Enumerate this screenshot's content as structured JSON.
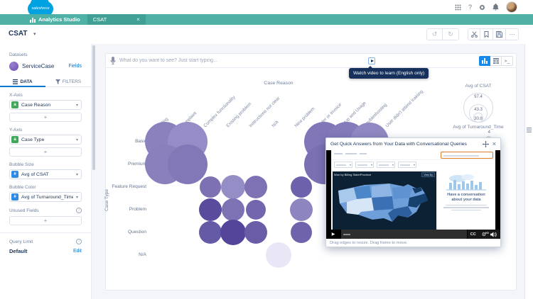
{
  "header": {
    "brand": "salesforce",
    "help_glyph": "?"
  },
  "appbar": {
    "app_name": "Analytics Studio",
    "tab_label": "CSAT"
  },
  "toolbar": {
    "title": "CSAT"
  },
  "icons": {
    "caret": "▾",
    "close": "×",
    "undo": "↺",
    "redo": "↻",
    "more": "···",
    "saql": ">_",
    "info": "i",
    "dimension_glyph": "a",
    "measure_glyph": "#",
    "play": "▶",
    "gear": "⚙"
  },
  "sidebar": {
    "datasets_label": "Datasets",
    "dataset_name": "ServiceCase",
    "fields_link": "Fields",
    "tabs": [
      {
        "label": "DATA"
      },
      {
        "label": "FILTERS"
      }
    ],
    "fields": [
      {
        "label": "X-Axis",
        "value": "Case Reason",
        "kind": "dimension"
      },
      {
        "label": "Y-Axis",
        "value": "Case Type",
        "kind": "dimension"
      },
      {
        "label": "Bubble Size",
        "value": "Avg of CSAT",
        "kind": "measure"
      },
      {
        "label": "Bubble Color",
        "value": "Avg of Turnaround_Time",
        "kind": "measure"
      }
    ],
    "add_label": "+",
    "unused_fields_label": "Unused Fields",
    "query_limit_label": "Query Limit",
    "query_limit_value": "Default",
    "edit_link": "Edit"
  },
  "explorer": {
    "placeholder": "What do you want to see? Just start typing...",
    "tooltip": "Watch video to learn (English only)"
  },
  "chart_data": {
    "type": "bubble",
    "x_title": "Case Reason",
    "y_title": "Case Type",
    "x_categories": [
      "Billing",
      "Complaint",
      "Complex functionality",
      "Existing problem",
      "Instructions not clear",
      "N/A",
      "New problem",
      "Order or Invoice",
      "Setup and Usage",
      "Troubleshooting",
      "User didn't attend training"
    ],
    "y_categories": [
      "Basic",
      "Premium",
      "Feature Request",
      "Problem",
      "Question",
      "N/A"
    ],
    "size_legend": {
      "title": "Avg of CSAT",
      "values": [
        "97.4",
        "43.3",
        "30.8"
      ]
    },
    "color_legend": {
      "title": "Avg of Turnaround_Time",
      "max_label": "4"
    },
    "bubbles": [
      {
        "x": 0,
        "y": 0,
        "r": 28,
        "color": "#8b81bd"
      },
      {
        "x": 1,
        "y": 0,
        "r": 28,
        "color": "#968dc6"
      },
      {
        "x": 7,
        "y": 0,
        "r": 28,
        "color": "#8177b8"
      },
      {
        "x": 8,
        "y": 0,
        "r": 28,
        "color": "#847bba"
      },
      {
        "x": 9,
        "y": 0,
        "r": 27,
        "color": "#9189c2"
      },
      {
        "x": 0,
        "y": 1,
        "r": 28,
        "color": "#8a80bc"
      },
      {
        "x": 1,
        "y": 1,
        "r": 28,
        "color": "#8278b8"
      },
      {
        "x": 7,
        "y": 1,
        "r": 28,
        "color": "#7b70b3"
      },
      {
        "x": 2,
        "y": 2,
        "r": 15,
        "color": "#7d71b4"
      },
      {
        "x": 3,
        "y": 2,
        "r": 17,
        "color": "#958dc5"
      },
      {
        "x": 4,
        "y": 2,
        "r": 16,
        "color": "#7e72b4"
      },
      {
        "x": 6,
        "y": 2,
        "r": 15,
        "color": "#6e61ab"
      },
      {
        "x": 2,
        "y": 3,
        "r": 16,
        "color": "#5a4b9d"
      },
      {
        "x": 3,
        "y": 3,
        "r": 16,
        "color": "#7d72b4"
      },
      {
        "x": 4,
        "y": 3,
        "r": 14,
        "color": "#7366ae"
      },
      {
        "x": 6,
        "y": 3,
        "r": 16,
        "color": "#8d85c0"
      },
      {
        "x": 2,
        "y": 4,
        "r": 16,
        "color": "#655aa5"
      },
      {
        "x": 3,
        "y": 4,
        "r": 18,
        "color": "#55459a"
      },
      {
        "x": 4,
        "y": 4,
        "r": 16,
        "color": "#6a5ca6"
      },
      {
        "x": 6,
        "y": 4,
        "r": 15,
        "color": "#6f63ab"
      },
      {
        "x": 5,
        "y": 5,
        "r": 18,
        "color": "#e9e6f5"
      }
    ]
  },
  "overlay": {
    "title": "Get Quick Answers from Your Data with Conversational Queries",
    "resize_hint": "Drag edges to resize. Drag frame to move.",
    "video": {
      "map_title": "Won by Billing State/Province",
      "view_by": "View By",
      "headline": "Have a conversation about your data",
      "cc": "CC",
      "hd": "HD"
    }
  }
}
